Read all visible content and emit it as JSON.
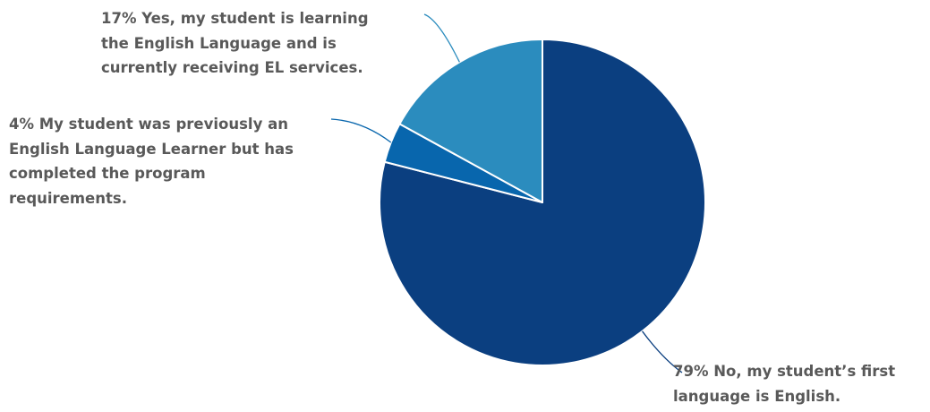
{
  "chart_data": {
    "type": "pie",
    "title": "",
    "slices": [
      {
        "percent_label": "79%",
        "value": 79,
        "label_lines": [
          "No, my student’s first",
          "language is English."
        ],
        "color": "#0b3f80"
      },
      {
        "percent_label": "4%",
        "value": 4,
        "label_lines": [
          "My student was previously an",
          "English Language Learner but has",
          "completed the program",
          "requirements."
        ],
        "color": "#0866ad"
      },
      {
        "percent_label": "17%",
        "value": 17,
        "label_lines": [
          "Yes, my student is learning",
          "the English Language and is",
          "currently receiving EL services."
        ],
        "color": "#2b8cbe"
      }
    ],
    "start_angle": "12 o'clock",
    "direction": "clockwise",
    "label_color": "#595959"
  }
}
